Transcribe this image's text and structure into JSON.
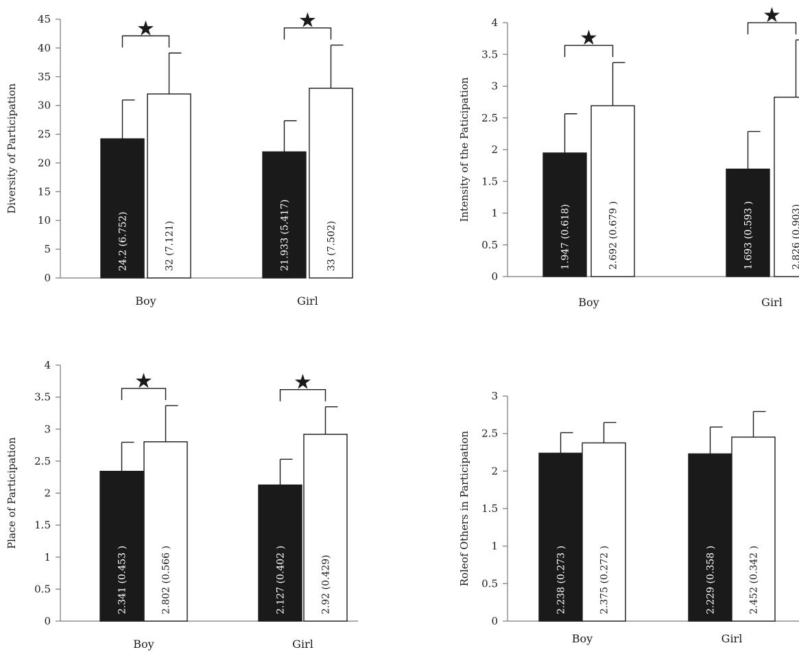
{
  "chart_data": [
    {
      "type": "bar",
      "ylabel": "Diversity of Participation",
      "categories": [
        "Boy",
        "Girl"
      ],
      "ylim": [
        0,
        45
      ],
      "yticks": [
        0,
        5,
        10,
        15,
        20,
        25,
        30,
        35,
        40,
        45
      ],
      "yticklabels": [
        "0",
        "5",
        "10",
        "15",
        "20",
        "25",
        "30",
        "35",
        "40",
        "45"
      ],
      "series": [
        {
          "color": "#1a1a1a",
          "values": [
            24.2,
            21.933
          ],
          "errors": [
            6.752,
            5.417
          ],
          "labels": [
            "24.2 (6.752)",
            "21.933 (5.417)"
          ]
        },
        {
          "color": "#ffffff",
          "values": [
            32,
            33
          ],
          "errors": [
            7.121,
            7.502
          ],
          "labels": [
            "32 (7.121)",
            "33 (7.502)"
          ]
        }
      ],
      "significance": [
        true,
        true
      ],
      "significance_marker": "★"
    },
    {
      "type": "bar",
      "ylabel": "Intensity of the Paticipation",
      "categories": [
        "Boy",
        "Girl"
      ],
      "ylim": [
        0,
        4
      ],
      "yticks": [
        0,
        0.5,
        1,
        1.5,
        2,
        2.5,
        3,
        3.5,
        4
      ],
      "yticklabels": [
        "0",
        "0.5",
        "1",
        "1.5",
        "2",
        "2.5",
        "3",
        "3.5",
        "4"
      ],
      "series": [
        {
          "color": "#1a1a1a",
          "values": [
            1.947,
            1.693
          ],
          "errors": [
            0.618,
            0.593
          ],
          "labels": [
            "1.947 (0.618)",
            "1.693 (0.593 )"
          ]
        },
        {
          "color": "#ffffff",
          "values": [
            2.692,
            2.826
          ],
          "errors": [
            0.679,
            0.903
          ],
          "labels": [
            "2.692 (0.679 )",
            "2.826 (0.903)"
          ]
        }
      ],
      "significance": [
        true,
        true
      ],
      "significance_marker": "★"
    },
    {
      "type": "bar",
      "ylabel": "Place of Participation",
      "categories": [
        "Boy",
        "Girl"
      ],
      "ylim": [
        0,
        4
      ],
      "yticks": [
        0,
        0.5,
        1,
        1.5,
        2,
        2.5,
        3,
        3.5,
        4
      ],
      "yticklabels": [
        "0",
        "0.5",
        "1",
        "1.5",
        "2",
        "2.5",
        "3",
        "3.5",
        "4"
      ],
      "series": [
        {
          "color": "#1a1a1a",
          "values": [
            2.341,
            2.127
          ],
          "errors": [
            0.453,
            0.402
          ],
          "labels": [
            "2.341 (0.453 )",
            "2.127 (0.402 )"
          ]
        },
        {
          "color": "#ffffff",
          "values": [
            2.802,
            2.92
          ],
          "errors": [
            0.566,
            0.429
          ],
          "labels": [
            "2.802 (0.566 )",
            "2.92 (0.429)"
          ]
        }
      ],
      "significance": [
        true,
        true
      ],
      "significance_marker": "★"
    },
    {
      "type": "bar",
      "ylabel": "Roleof Others in Participation",
      "categories": [
        "Boy",
        "Girl"
      ],
      "ylim": [
        0,
        3
      ],
      "yticks": [
        0,
        0.5,
        1,
        1.5,
        2,
        2.5,
        3
      ],
      "yticklabels": [
        "0",
        "0.5",
        "1",
        "1.5",
        "2",
        "2.5",
        "3"
      ],
      "series": [
        {
          "color": "#1a1a1a",
          "values": [
            2.238,
            2.229
          ],
          "errors": [
            0.273,
            0.358
          ],
          "labels": [
            "2.238 (0.273 )",
            "2.229 (0.358 )"
          ]
        },
        {
          "color": "#ffffff",
          "values": [
            2.375,
            2.452
          ],
          "errors": [
            0.272,
            0.342
          ],
          "labels": [
            "2.375 (0.272 )",
            "2.452 (0.342 )"
          ]
        }
      ],
      "significance": [
        false,
        false
      ],
      "significance_marker": "★"
    }
  ]
}
